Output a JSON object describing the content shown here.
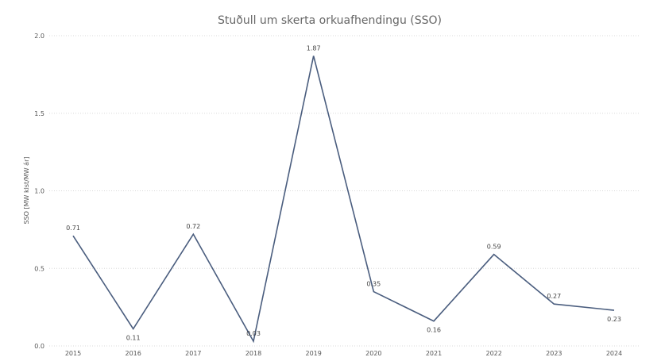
{
  "chart_data": {
    "type": "line",
    "title": "Stuðull um skerta orkuafhendingu (SSO)",
    "xlabel": "",
    "ylabel": "SSO [MW klst/MW ár]",
    "categories": [
      "2015",
      "2016",
      "2017",
      "2018",
      "2019",
      "2020",
      "2021",
      "2022",
      "2023",
      "2024"
    ],
    "values": [
      0.71,
      0.11,
      0.72,
      0.03,
      1.87,
      0.35,
      0.16,
      0.59,
      0.27,
      0.23
    ],
    "data_labels": [
      "0.71",
      "0.11",
      "0.72",
      "0.03",
      "1.87",
      "0.35",
      "0.16",
      "0.59",
      "0.27",
      "0.23"
    ],
    "ylim": [
      0,
      2.0
    ],
    "yticks": [
      "0.0",
      "0.5",
      "1.0",
      "1.5",
      "2.0"
    ],
    "grid": true,
    "line_color": "#4a5d7e"
  }
}
